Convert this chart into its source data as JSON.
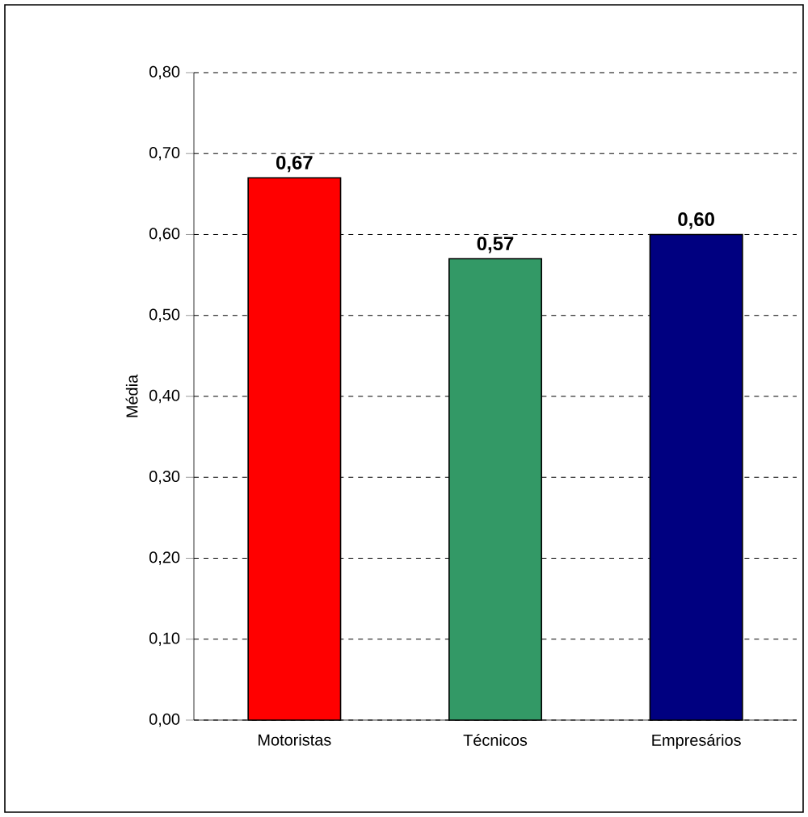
{
  "chart_data": {
    "type": "bar",
    "ylabel": "Média",
    "categories": [
      "Motoristas",
      "Técnicos",
      "Empresários"
    ],
    "values": [
      0.67,
      0.57,
      0.6
    ],
    "colors": [
      "#ff0000",
      "#339966",
      "#000080"
    ],
    "value_labels": [
      "0,67",
      "0,57",
      "0,60"
    ],
    "ylim": [
      0,
      0.8
    ],
    "yticks": [
      {
        "value": 0,
        "label": "0,00"
      },
      {
        "value": 0.1,
        "label": "0,10"
      },
      {
        "value": 0.2,
        "label": "0,20"
      },
      {
        "value": 0.3,
        "label": "0,30"
      },
      {
        "value": 0.4,
        "label": "0,40"
      },
      {
        "value": 0.5,
        "label": "0,50"
      },
      {
        "value": 0.6,
        "label": "0,60"
      },
      {
        "value": 0.7,
        "label": "0,70"
      },
      {
        "value": 0.8,
        "label": "0,80"
      }
    ],
    "grid": "y"
  }
}
